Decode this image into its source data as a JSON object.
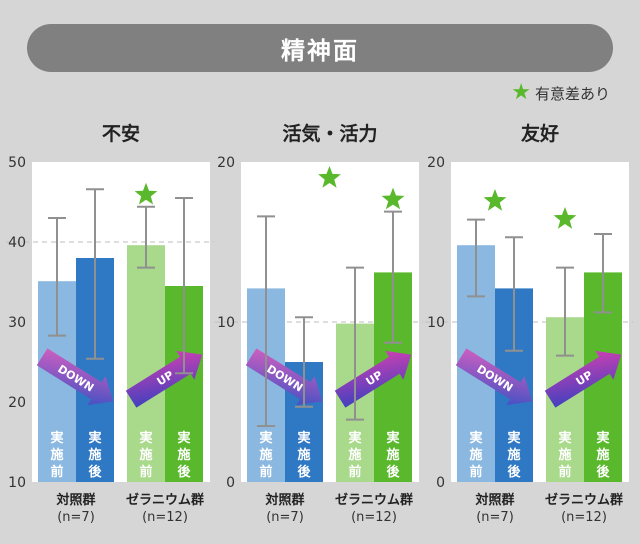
{
  "header": {
    "title": "精神面"
  },
  "legend": {
    "star_icon": "star-icon",
    "label": "有意差あり",
    "star_color": "#5ab82c"
  },
  "colors": {
    "control_before": "#8bb8e0",
    "control_after": "#2f78c4",
    "geranium_before": "#a9d98b",
    "geranium_after": "#5ab82c",
    "error_bar": "#909090",
    "down_arrow_start": "#e060c0",
    "down_arrow_end": "#2f50c4",
    "up_arrow_start": "#3040c0",
    "up_arrow_end": "#e040b0"
  },
  "chart_data": [
    {
      "type": "bar",
      "title": "不安",
      "ylim": [
        10,
        50
      ],
      "yticks": [
        "10",
        "20",
        "30",
        "40",
        "50"
      ],
      "gridlines": [
        40
      ],
      "groups": [
        {
          "label": "対照群",
          "n": "(n=7)"
        },
        {
          "label": "ゼラニウム群",
          "n": "(n=12)"
        }
      ],
      "bar_labels": [
        "実施前",
        "実施後",
        "実施前",
        "実施後"
      ],
      "values": [
        35.1,
        38.0,
        39.6,
        34.5
      ],
      "error_low": [
        28.3,
        25.4,
        36.8,
        23.6
      ],
      "error_high": [
        43.0,
        46.6,
        44.4,
        45.5
      ],
      "significant": [
        false,
        false,
        true,
        false
      ],
      "arrows": [
        {
          "group": 0,
          "text": "DOWN"
        },
        {
          "group": 1,
          "text": "UP"
        }
      ]
    },
    {
      "type": "bar",
      "title": "活気・活力",
      "ylim": [
        0,
        20
      ],
      "yticks": [
        "0",
        "10",
        "20"
      ],
      "gridlines": [
        10
      ],
      "groups": [
        {
          "label": "対照群",
          "n": "(n=7)"
        },
        {
          "label": "ゼラニウム群",
          "n": "(n=12)"
        }
      ],
      "bar_labels": [
        "実施前",
        "実施後",
        "実施前",
        "実施後"
      ],
      "values": [
        12.1,
        7.5,
        9.9,
        13.1
      ],
      "error_low": [
        3.5,
        4.7,
        3.9,
        8.7
      ],
      "error_high": [
        16.6,
        10.3,
        13.4,
        16.9
      ],
      "significant": [
        false,
        false,
        false,
        true
      ],
      "top_star": true,
      "arrows": [
        {
          "group": 0,
          "text": "DOWN"
        },
        {
          "group": 1,
          "text": "UP"
        }
      ]
    },
    {
      "type": "bar",
      "title": "友好",
      "ylim": [
        0,
        20
      ],
      "yticks": [
        "0",
        "10",
        "20"
      ],
      "gridlines": [
        10
      ],
      "groups": [
        {
          "label": "対照群",
          "n": "(n=7)"
        },
        {
          "label": "ゼラニウム群",
          "n": "(n=12)"
        }
      ],
      "bar_labels": [
        "実施前",
        "実施後",
        "実施前",
        "実施後"
      ],
      "values": [
        14.8,
        12.1,
        10.3,
        13.1
      ],
      "error_low": [
        11.6,
        8.2,
        7.9,
        10.6
      ],
      "error_high": [
        16.4,
        15.3,
        13.4,
        15.5
      ],
      "significant": [
        false,
        false,
        false,
        false
      ],
      "group_star": true,
      "arrows": [
        {
          "group": 0,
          "text": "DOWN"
        },
        {
          "group": 1,
          "text": "UP"
        }
      ]
    }
  ]
}
